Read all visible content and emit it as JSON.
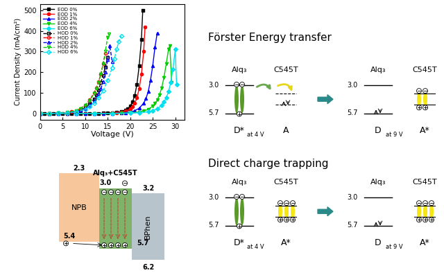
{
  "chart_data": {
    "type": "line",
    "xlabel": "Voltage (V)",
    "ylabel": "Current Density (mA/cm²)",
    "xlim": [
      0,
      32
    ],
    "xticks": [
      0,
      5,
      10,
      15,
      20,
      25,
      30
    ],
    "ylim": [
      -30,
      530
    ],
    "yticks": [
      0,
      100,
      200,
      300,
      400,
      500
    ],
    "legend": "upper left",
    "series": [
      {
        "name": "EOD 0%",
        "color": "#000000",
        "marker": "square",
        "line_style": "solid",
        "x": [
          0,
          1,
          2,
          3,
          4,
          5,
          6,
          7,
          8,
          9,
          10,
          11,
          12,
          13,
          14,
          15,
          16,
          17,
          18,
          19,
          19.5,
          20,
          20.5,
          21,
          21.5,
          22,
          22.5,
          22.8
        ],
        "values": [
          0,
          0,
          0,
          0,
          0,
          0,
          0,
          0,
          0,
          0,
          0,
          0,
          0,
          0,
          1,
          2,
          3,
          5,
          9,
          17,
          24,
          35,
          55,
          85,
          140,
          230,
          360,
          500
        ]
      },
      {
        "name": "EOD 1%",
        "color": "#ff0000",
        "marker": "circle",
        "line_style": "solid",
        "x": [
          0,
          2,
          4,
          6,
          8,
          10,
          12,
          14,
          16,
          17,
          18,
          19,
          20,
          20.5,
          21,
          21.5,
          22,
          22.5,
          23,
          23.3
        ],
        "values": [
          0,
          0,
          0,
          0,
          0,
          0,
          0,
          0,
          1,
          3,
          6,
          11,
          22,
          32,
          48,
          75,
          120,
          190,
          300,
          420
        ]
      },
      {
        "name": "EOD 2%",
        "color": "#0000ff",
        "marker": "triangle_up",
        "line_style": "solid",
        "x": [
          0,
          2,
          4,
          6,
          8,
          10,
          12,
          14,
          16,
          18,
          19,
          20,
          21,
          22,
          23,
          23.5,
          24,
          24.5,
          25,
          25.5,
          26
        ],
        "values": [
          0,
          0,
          0,
          0,
          0,
          0,
          0,
          0,
          0,
          2,
          4,
          7,
          13,
          25,
          50,
          72,
          105,
          160,
          230,
          320,
          390
        ]
      },
      {
        "name": "EOD 4%",
        "color": "#00cc00",
        "marker": "triangle_down",
        "line_style": "solid",
        "x": [
          0,
          4,
          8,
          12,
          16,
          18,
          20,
          22,
          23,
          24,
          25,
          25.5,
          26,
          26.5,
          27,
          27.5,
          28,
          28.5,
          28.8,
          29.2
        ],
        "values": [
          0,
          0,
          0,
          0,
          0,
          1,
          3,
          7,
          12,
          20,
          35,
          48,
          65,
          90,
          125,
          175,
          240,
          310,
          330,
          150
        ]
      },
      {
        "name": "EOD 6%",
        "color": "#00e0f0",
        "marker": "diamond",
        "line_style": "solid",
        "x": [
          0,
          4,
          8,
          12,
          16,
          20,
          22,
          24,
          25,
          26,
          27,
          27.5,
          28,
          28.5,
          29,
          29.5,
          30,
          30.3
        ],
        "values": [
          0,
          0,
          0,
          0,
          0,
          2,
          4,
          8,
          14,
          22,
          40,
          55,
          75,
          105,
          150,
          215,
          310,
          140
        ]
      },
      {
        "name": "HOD 0%",
        "color": "#000000",
        "marker": "open_square",
        "line_style": "dashed",
        "x": [
          0,
          2,
          4,
          6,
          7,
          8,
          9,
          10,
          11,
          12,
          12.5,
          13,
          13.5,
          14,
          14.5,
          15
        ],
        "values": [
          0,
          0,
          1,
          3,
          6,
          10,
          17,
          28,
          45,
          70,
          90,
          115,
          150,
          185,
          225,
          270
        ]
      },
      {
        "name": "HOD 1%",
        "color": "#ff0000",
        "marker": "open_circle",
        "line_style": "dashed",
        "x": [
          0,
          2,
          4,
          6,
          7,
          8,
          9,
          10,
          11,
          12,
          12.5,
          13,
          13.5,
          14,
          14.5
        ],
        "values": [
          0,
          0,
          1,
          4,
          8,
          14,
          24,
          40,
          65,
          100,
          125,
          155,
          190,
          240,
          290
        ]
      },
      {
        "name": "HOD 2%",
        "color": "#0000ff",
        "marker": "open_triangle_up",
        "line_style": "dashed",
        "x": [
          0,
          2,
          4,
          6,
          8,
          9,
          10,
          11,
          12,
          13,
          13.5,
          14,
          14.5,
          15,
          15.5,
          16
        ],
        "values": [
          0,
          0,
          1,
          3,
          9,
          15,
          24,
          38,
          60,
          95,
          120,
          155,
          200,
          260,
          330,
          250
        ]
      },
      {
        "name": "HOD 4%",
        "color": "#00cc00",
        "marker": "open_triangle_down",
        "line_style": "dashed",
        "x": [
          0,
          2,
          4,
          6,
          8,
          9,
          10,
          11,
          12,
          12.5,
          13,
          13.5,
          14,
          14.5,
          15,
          15.3
        ],
        "values": [
          0,
          0,
          1,
          5,
          14,
          24,
          40,
          62,
          95,
          120,
          150,
          190,
          240,
          300,
          370,
          385
        ]
      },
      {
        "name": "HOD 6%",
        "color": "#00e0f0",
        "marker": "open_diamond",
        "line_style": "dashed",
        "x": [
          0,
          2,
          4,
          6,
          8,
          10,
          11,
          12,
          13,
          14,
          15,
          16,
          16.5,
          17,
          17.5,
          18
        ],
        "values": [
          0,
          0,
          1,
          3,
          8,
          20,
          32,
          50,
          75,
          110,
          160,
          220,
          265,
          310,
          350,
          375
        ]
      }
    ]
  },
  "energy_levels": {
    "layers": [
      {
        "name": "NPB",
        "lumo": 2.3,
        "homo": 5.4
      },
      {
        "name": "Alq₃+C545T",
        "lumo": 3.0,
        "homo": 5.7
      },
      {
        "name": "BPhen",
        "lumo": 3.2,
        "homo": 6.2
      }
    ]
  },
  "panels": [
    {
      "title": "Förster Energy transfer",
      "levels": [
        3.0,
        5.7
      ],
      "left": {
        "host": "Alq₃",
        "guest": "C545T",
        "donor": "D*",
        "acceptor": "A",
        "condition": "at 4 V"
      },
      "right": {
        "host": "Alq₃",
        "guest": "C545T",
        "donor": "D",
        "acceptor": "A*",
        "condition": "at 9 V"
      }
    },
    {
      "title": "Direct charge trapping",
      "levels": [
        3.0,
        5.7
      ],
      "left": {
        "host": "Alq₃",
        "guest": "C545T",
        "donor": "D*",
        "acceptor": "A*",
        "condition": "at 4 V"
      },
      "right": {
        "host": "Alq₃",
        "guest": "C545T",
        "donor": "D",
        "acceptor": "A*",
        "condition": "at 9 V"
      }
    }
  ]
}
